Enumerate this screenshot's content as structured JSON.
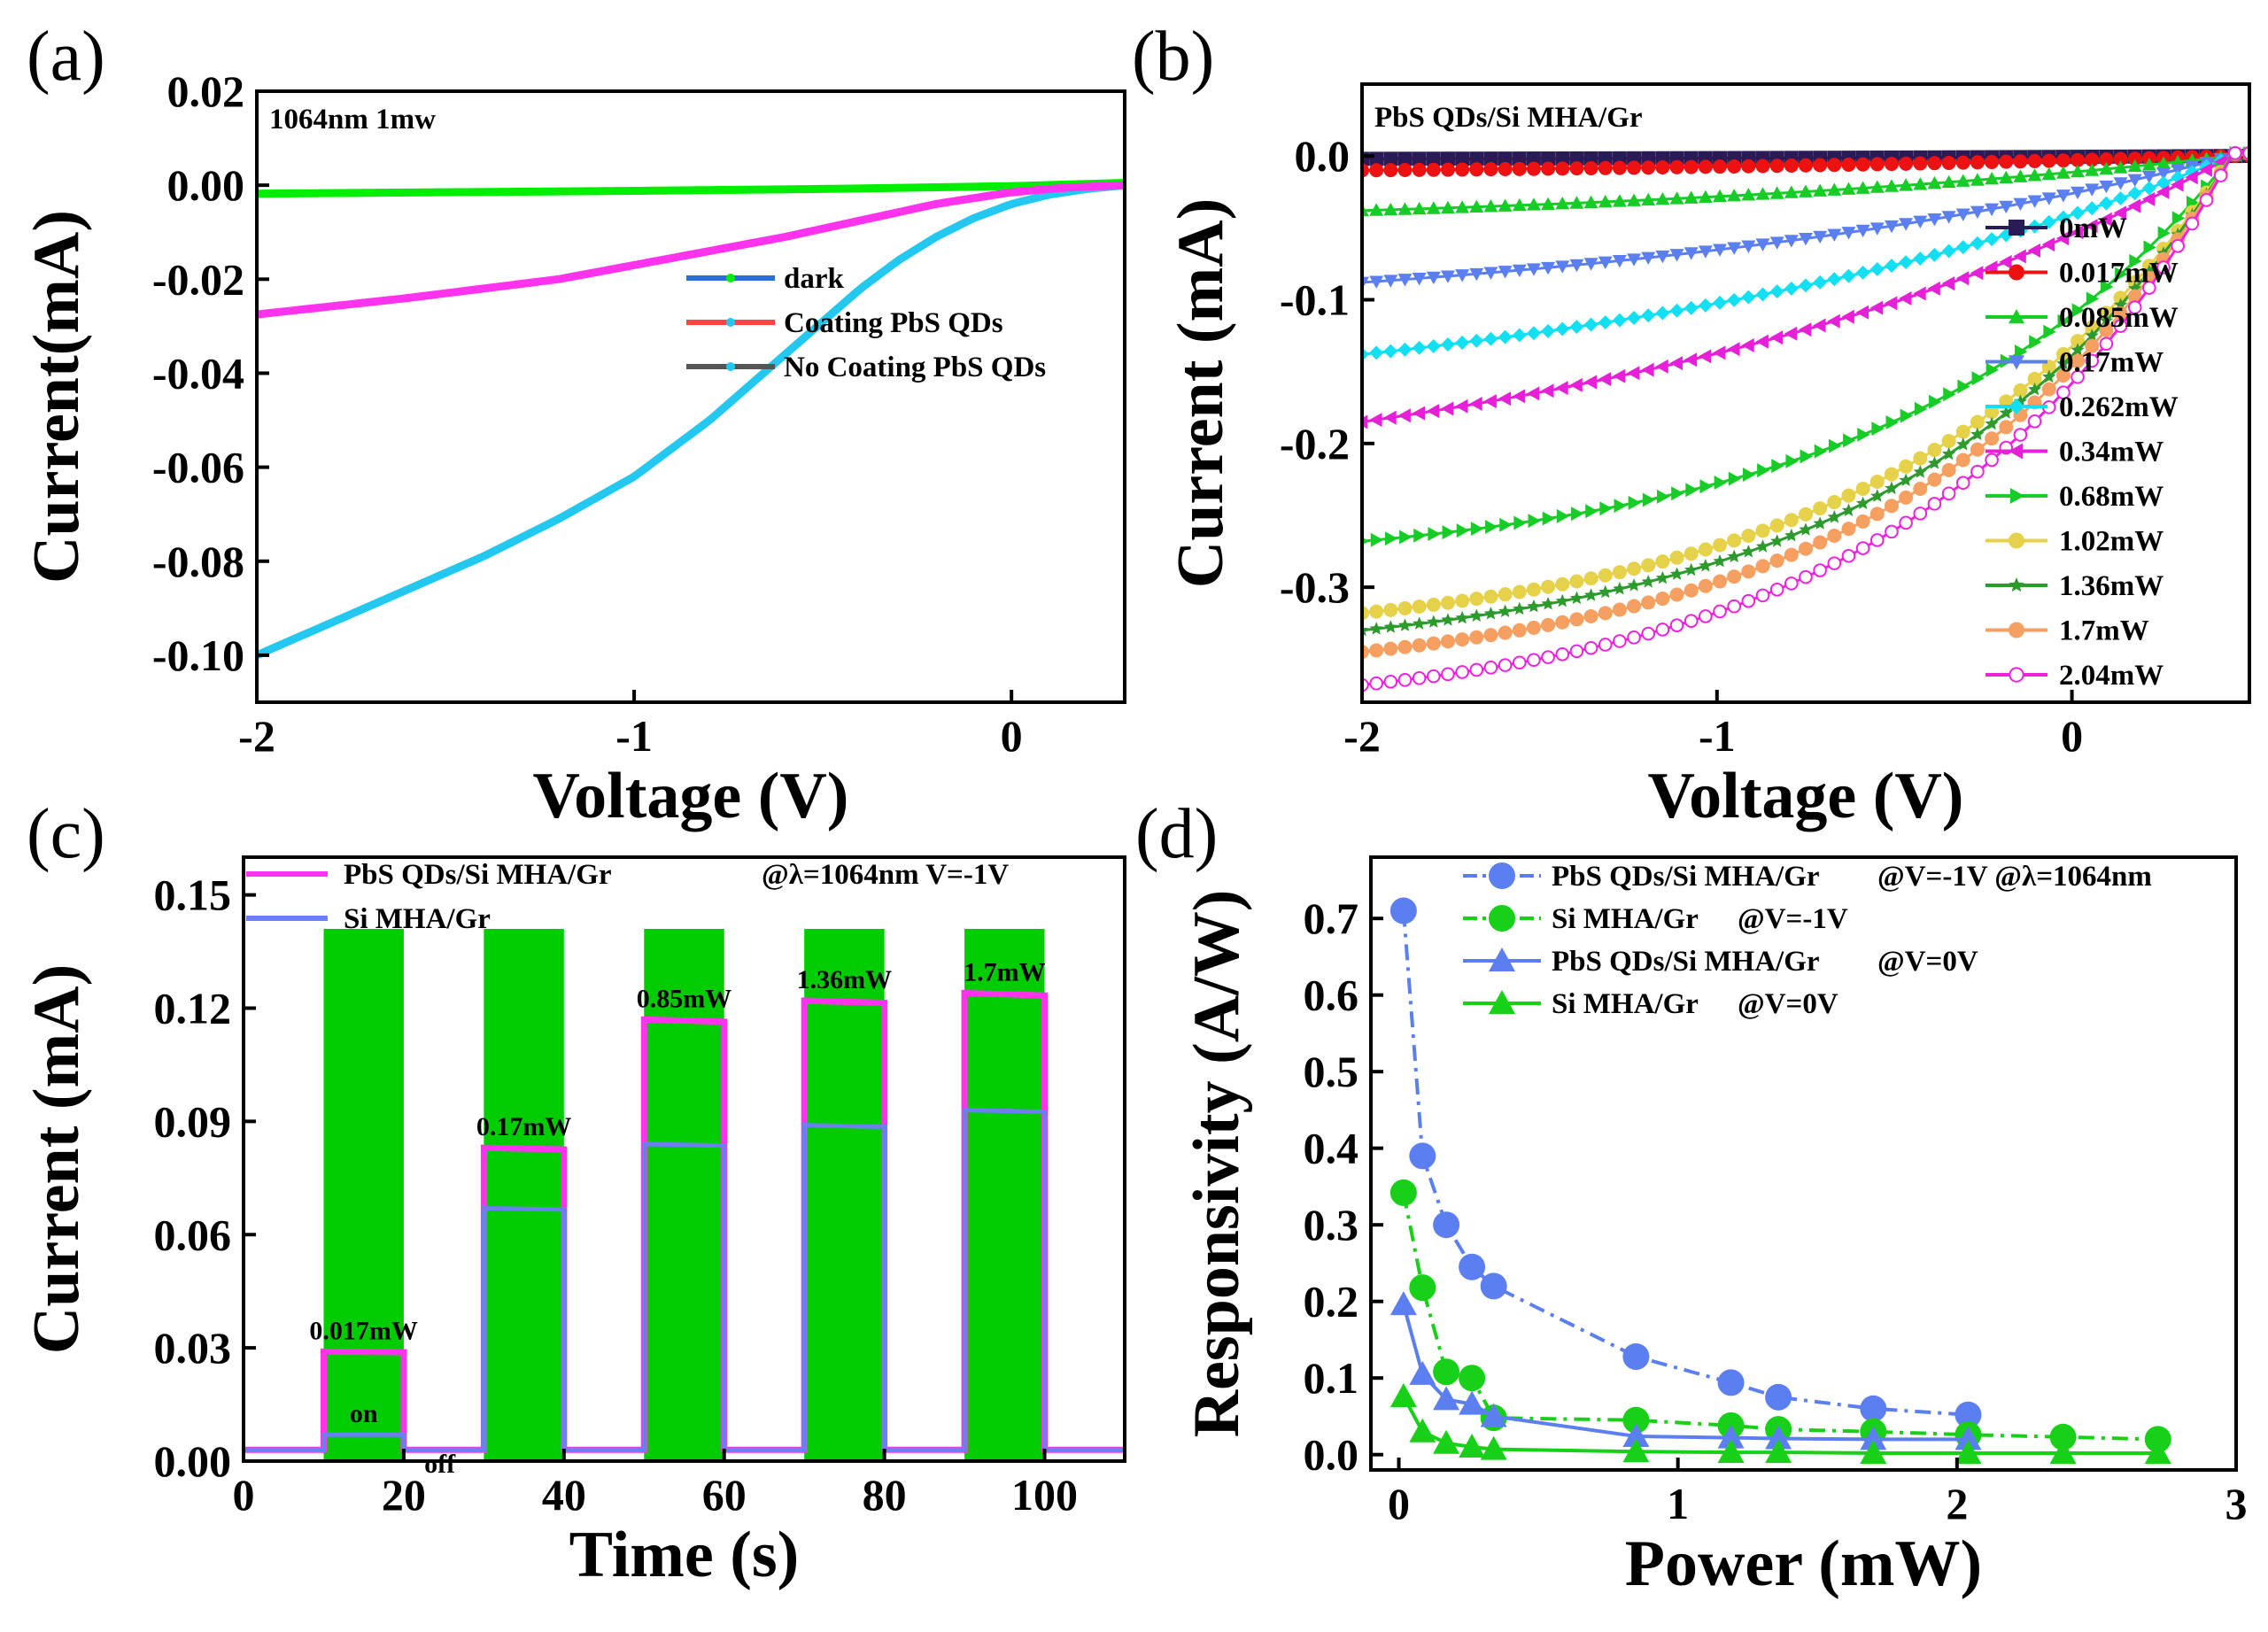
{
  "chart_data": [
    {
      "panel": "(a)",
      "type": "line",
      "title": "1064nm 1mw",
      "xlabel": "Voltage (V)",
      "ylabel": "Current(mA)",
      "xlim": [
        -2,
        0.3
      ],
      "ylim": [
        -0.11,
        0.02
      ],
      "xticks": [
        -2,
        -1,
        0
      ],
      "xtick_labels": [
        "-2",
        "-1",
        "0"
      ],
      "yticks": [
        0.02,
        0.0,
        -0.02,
        -0.04,
        -0.06,
        -0.08,
        -0.1
      ],
      "ytick_labels": [
        "0.02",
        "0.00",
        "-0.02",
        "-0.04",
        "-0.06",
        "-0.08",
        "-0.10"
      ],
      "legend_position": "center-right",
      "series": [
        {
          "name": "dark",
          "color": "#00ee00",
          "legend_color": "#2b6fd6",
          "x": [
            -2,
            -1.5,
            -1,
            -0.5,
            0,
            0.3
          ],
          "y": [
            -0.0018,
            -0.0015,
            -0.0012,
            -0.0008,
            -0.0002,
            0.0005
          ]
        },
        {
          "name": "Coating PbS QDs",
          "color": "#22c8f0",
          "legend_color": "#ff4444",
          "x": [
            -2,
            -1.8,
            -1.6,
            -1.4,
            -1.2,
            -1.0,
            -0.9,
            -0.8,
            -0.7,
            -0.6,
            -0.5,
            -0.4,
            -0.3,
            -0.2,
            -0.1,
            0,
            0.1,
            0.2,
            0.3
          ],
          "y": [
            -0.1,
            -0.093,
            -0.086,
            -0.079,
            -0.071,
            -0.062,
            -0.056,
            -0.05,
            -0.043,
            -0.036,
            -0.029,
            -0.022,
            -0.016,
            -0.011,
            -0.007,
            -0.004,
            -0.002,
            -0.0008,
            0.0
          ]
        },
        {
          "name": "No Coating PbS QDs",
          "color": "#ff33ee",
          "legend_color": "#555555",
          "x": [
            -2,
            -1.6,
            -1.2,
            -1.0,
            -0.8,
            -0.6,
            -0.4,
            -0.2,
            0,
            0.15,
            0.3
          ],
          "y": [
            -0.0275,
            -0.024,
            -0.02,
            -0.017,
            -0.014,
            -0.011,
            -0.0075,
            -0.004,
            -0.0015,
            -0.0005,
            0.0
          ]
        }
      ]
    },
    {
      "panel": "(b)",
      "type": "line",
      "title": "PbS QDs/Si MHA/Gr",
      "xlabel": "Voltage (V)",
      "ylabel": "Current (mA)",
      "xlim": [
        -2,
        0.5
      ],
      "ylim": [
        -0.38,
        0.05
      ],
      "xticks": [
        -2,
        -1,
        0
      ],
      "xtick_labels": [
        "-2",
        "-1",
        "0"
      ],
      "yticks": [
        0.0,
        -0.1,
        -0.2,
        -0.3
      ],
      "ytick_labels": [
        "0.0",
        "-0.1",
        "-0.2",
        "-0.3"
      ],
      "legend_position": "right",
      "series": [
        {
          "name": "0mW",
          "color": "#2a1a55",
          "marker": "square",
          "y_at_minus2": -0.002,
          "mode": "linear"
        },
        {
          "name": "0.017mW",
          "color": "#ee1111",
          "marker": "circle",
          "y_at_minus2": -0.01,
          "mode": "linear"
        },
        {
          "name": "0.085mW",
          "color": "#18cc28",
          "marker": "triangle-up",
          "y_at_minus2": -0.038,
          "mode": "linear"
        },
        {
          "name": "0.17mW",
          "color": "#5b7ff0",
          "marker": "triangle-down",
          "y_at_minus2": -0.088,
          "mode": "linear"
        },
        {
          "name": "0.262mW",
          "color": "#12e0f2",
          "marker": "diamond",
          "y_at_minus2": -0.138,
          "mode": "linear"
        },
        {
          "name": "0.34mW",
          "color": "#e71fd8",
          "marker": "triangle-left",
          "y_at_minus2": -0.185,
          "mode": "linear"
        },
        {
          "name": "0.68mW",
          "color": "#18cc28",
          "marker": "triangle-right",
          "y_at_minus2": -0.268,
          "mode": "curve"
        },
        {
          "name": "1.02mW",
          "color": "#e6d24a",
          "marker": "hexagon",
          "y_at_minus2": -0.318,
          "mode": "curve"
        },
        {
          "name": "1.36mW",
          "color": "#2c9a2c",
          "marker": "star",
          "y_at_minus2": -0.33,
          "mode": "curve"
        },
        {
          "name": "1.7mW",
          "color": "#f5a060",
          "marker": "pentagon",
          "y_at_minus2": -0.345,
          "mode": "curve"
        },
        {
          "name": "2.04mW",
          "color": "#ee22dd",
          "marker": "circle-open",
          "y_at_minus2": -0.368,
          "mode": "curve"
        }
      ]
    },
    {
      "panel": "(c)",
      "type": "line",
      "xlabel": "Time (s)",
      "ylabel": "Current (mA)",
      "xlim": [
        0,
        110
      ],
      "ylim": [
        0.0,
        0.16
      ],
      "xticks": [
        0,
        20,
        40,
        60,
        80,
        100
      ],
      "xtick_labels": [
        "0",
        "20",
        "40",
        "60",
        "80",
        "100"
      ],
      "yticks": [
        0.0,
        0.03,
        0.06,
        0.09,
        0.12,
        0.15
      ],
      "ytick_labels": [
        "0.00",
        "0.03",
        "0.06",
        "0.09",
        "0.12",
        "0.15"
      ],
      "legend_position": "top",
      "legend_note": "@λ=1064nm V=-1V",
      "on_bands": [
        [
          10,
          20
        ],
        [
          30,
          40
        ],
        [
          50,
          60
        ],
        [
          70,
          80
        ],
        [
          90,
          100
        ]
      ],
      "band_top": 0.141,
      "band_color": "#00cc00",
      "baseline": 0.003,
      "series": [
        {
          "name": "PbS QDs/Si MHA/Gr",
          "color": "#ff33ee",
          "on_levels": [
            0.029,
            0.083,
            0.117,
            0.122,
            0.124
          ]
        },
        {
          "name": "Si MHA/Gr",
          "color": "#6a7ff2",
          "on_levels": [
            0.007,
            0.067,
            0.084,
            0.089,
            0.093
          ]
        }
      ],
      "power_labels": [
        "0.017mW",
        "0.17mW",
        "0.85mW",
        "1.36mW",
        "1.7mW"
      ],
      "annotations": {
        "on": "on",
        "off": "off"
      }
    },
    {
      "panel": "(d)",
      "type": "scatter",
      "xlabel": "Power (mW)",
      "ylabel": "Responsivity (A/W)",
      "xlim": [
        -0.1,
        3.0
      ],
      "ylim": [
        -0.02,
        0.78
      ],
      "xticks": [
        0,
        1,
        2,
        3
      ],
      "xtick_labels": [
        "0",
        "1",
        "2",
        "3"
      ],
      "yticks": [
        0.0,
        0.1,
        0.2,
        0.3,
        0.4,
        0.5,
        0.6,
        0.7
      ],
      "ytick_labels": [
        "0.0",
        "0.1",
        "0.2",
        "0.3",
        "0.4",
        "0.5",
        "0.6",
        "0.7"
      ],
      "legend_position": "top",
      "series": [
        {
          "name": "PbS QDs/Si MHA/Gr",
          "condition": "@V=-1V @λ=1064nm",
          "color": "#5b7ff0",
          "marker": "circle",
          "x": [
            0.017,
            0.085,
            0.17,
            0.262,
            0.34,
            0.85,
            1.19,
            1.36,
            1.7,
            2.04
          ],
          "y": [
            0.71,
            0.39,
            0.3,
            0.245,
            0.22,
            0.128,
            0.094,
            0.075,
            0.06,
            0.052
          ]
        },
        {
          "name": "Si MHA/Gr",
          "condition": "@V=-1V",
          "color": "#18d018",
          "marker": "circle",
          "x": [
            0.017,
            0.085,
            0.17,
            0.262,
            0.34,
            0.85,
            1.19,
            1.36,
            1.7,
            2.04,
            2.38,
            2.72
          ],
          "y": [
            0.342,
            0.218,
            0.108,
            0.1,
            0.048,
            0.045,
            0.038,
            0.033,
            0.03,
            0.026,
            0.023,
            0.02
          ]
        },
        {
          "name": "PbS QDs/Si MHA/Gr",
          "condition": "@V=0V",
          "color": "#5b7ff0",
          "marker": "triangle",
          "x": [
            0.017,
            0.085,
            0.17,
            0.262,
            0.34,
            0.85,
            1.19,
            1.36,
            1.7,
            2.04
          ],
          "y": [
            0.196,
            0.105,
            0.072,
            0.066,
            0.05,
            0.024,
            0.022,
            0.021,
            0.02,
            0.02
          ]
        },
        {
          "name": "Si MHA/Gr",
          "condition": "@V=0V",
          "color": "#18d018",
          "marker": "triangle",
          "x": [
            0.017,
            0.085,
            0.17,
            0.262,
            0.34,
            0.85,
            1.19,
            1.36,
            1.7,
            2.04,
            2.38,
            2.72
          ],
          "y": [
            0.076,
            0.03,
            0.015,
            0.01,
            0.007,
            0.004,
            0.003,
            0.003,
            0.002,
            0.002,
            0.002,
            0.002
          ]
        }
      ]
    }
  ]
}
